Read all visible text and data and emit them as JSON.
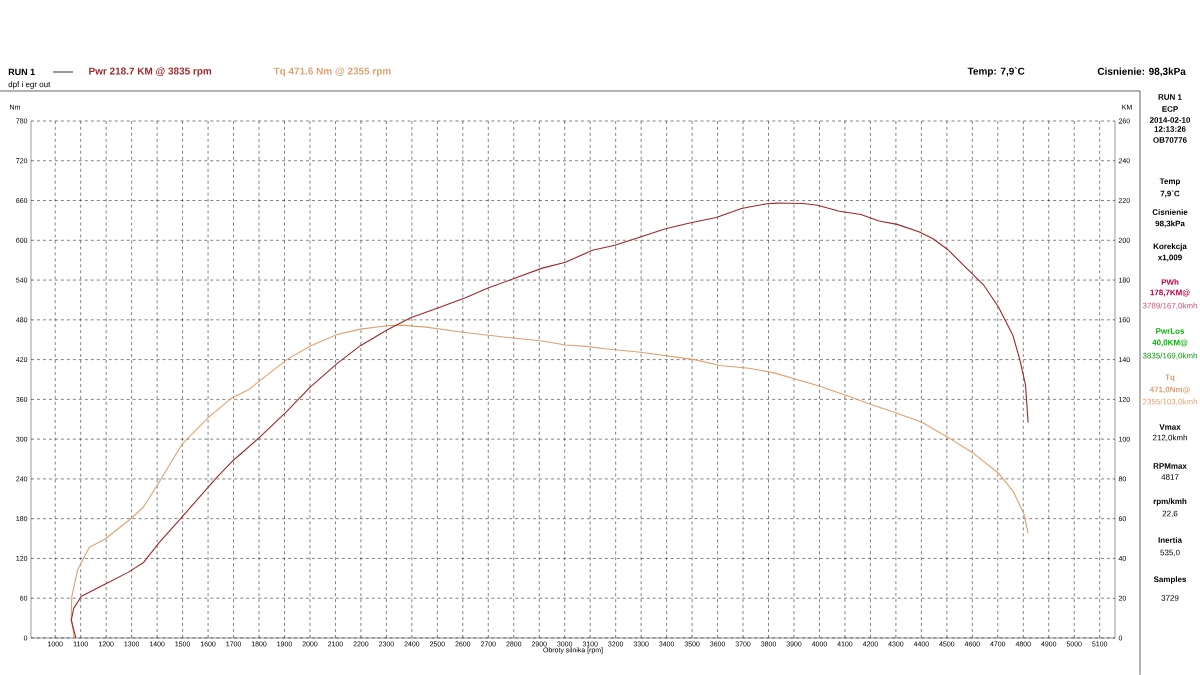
{
  "chart_data": {
    "type": "line",
    "xlabel": "Obroty silnika [rpm]",
    "ylabel": "Nm",
    "y2label": "KM",
    "xlim": [
      905,
      5160
    ],
    "ylim": [
      0,
      780
    ],
    "y2lim": [
      0,
      260
    ],
    "xticks": [
      1000,
      1100,
      1200,
      1300,
      1400,
      1500,
      1600,
      1700,
      1800,
      1900,
      2000,
      2100,
      2200,
      2300,
      2400,
      2500,
      2600,
      2700,
      2800,
      2900,
      3000,
      3100,
      3200,
      3300,
      3400,
      3500,
      3600,
      3700,
      3800,
      3900,
      4000,
      4100,
      4200,
      4300,
      4400,
      4500,
      4600,
      4700,
      4800,
      4900,
      5000,
      5100
    ],
    "yticks": [
      0,
      60,
      120,
      180,
      240,
      300,
      360,
      420,
      480,
      540,
      600,
      660,
      720,
      780
    ],
    "y2ticks": [
      0,
      20,
      40,
      60,
      80,
      100,
      120,
      140,
      160,
      180,
      200,
      220,
      240,
      260
    ],
    "grid": true,
    "series": [
      {
        "name": "Pwr  218.7 KM @ 3835 rpm",
        "color": "#a0262a",
        "axis": "y2",
        "x": [
          1081,
          1063,
          1073,
          1103,
          1195,
          1286,
          1347,
          1408,
          1499,
          1636,
          1696,
          1803,
          1909,
          2000,
          2106,
          2198,
          2304,
          2395,
          2502,
          2608,
          2699,
          2806,
          2912,
          3003,
          3109,
          3197,
          3297,
          3396,
          3495,
          3595,
          3694,
          3794,
          3835,
          3879,
          3936,
          3992,
          4078,
          4163,
          4234,
          4305,
          4390,
          4446,
          4503,
          4574,
          4645,
          4702,
          4759,
          4787,
          4809,
          4819
        ],
        "values": [
          0,
          9,
          15,
          21,
          27,
          33,
          38,
          48,
          61,
          81,
          89,
          101,
          114,
          126,
          138,
          147,
          155,
          161,
          166,
          171,
          176,
          181,
          186,
          189,
          195,
          197.5,
          201.7,
          205.8,
          208.8,
          211.5,
          216,
          218.4,
          218.7,
          218.6,
          218.5,
          217.6,
          214.6,
          213,
          209.7,
          208,
          204.3,
          200.8,
          195.4,
          186.4,
          177.4,
          166.6,
          152.3,
          139.7,
          127,
          108.3
        ]
      },
      {
        "name": "Tq 471.6 Nm @ 2355 rpm",
        "color": "#e0a070",
        "axis": "y",
        "x": [
          1075,
          1063,
          1065,
          1088,
          1134,
          1195,
          1301,
          1347,
          1400,
          1453,
          1499,
          1605,
          1696,
          1757,
          1909,
          2000,
          2106,
          2198,
          2304,
          2355,
          2456,
          2608,
          2760,
          2912,
          3003,
          3084,
          3167,
          3297,
          3510,
          3609,
          3723,
          3822,
          3992,
          4106,
          4205,
          4305,
          4404,
          4503,
          4603,
          4702,
          4759,
          4802,
          4819
        ],
        "values": [
          0,
          30,
          62,
          103,
          137,
          149,
          181,
          198,
          230,
          264,
          293,
          334,
          363,
          374,
          420,
          440,
          458,
          466,
          471,
          472,
          469,
          461,
          454,
          448,
          442,
          440,
          436,
          431,
          420,
          411,
          407,
          400,
          381,
          366,
          352,
          339,
          325,
          303,
          279,
          249,
          222,
          188,
          158
        ]
      }
    ],
    "annotations": [
      "RUN 1",
      "dpf i egr out",
      "Temp: 7,9`C",
      "Cisnienie: 98,3kPa",
      "RUN 1",
      "ECP",
      "2014-02-10",
      "12:13:26",
      "OB70776",
      "Temp",
      "7,9`C",
      "Cisnienie",
      "98,3kPa",
      "Korekcja",
      "x1,009",
      "PWh",
      "178,7KM@",
      "3789/167,0kmh",
      "PwrLos",
      "40,0KM@",
      "3835/169,0kmh",
      "Tq",
      "471,0Nm@",
      "2355/103,0kmh",
      "Vmax",
      "212,0kmh",
      "RPMmax",
      "4817",
      "rpm/kmh",
      "22,6",
      "Inertia",
      "535,0",
      "Samples",
      "3729"
    ]
  }
}
